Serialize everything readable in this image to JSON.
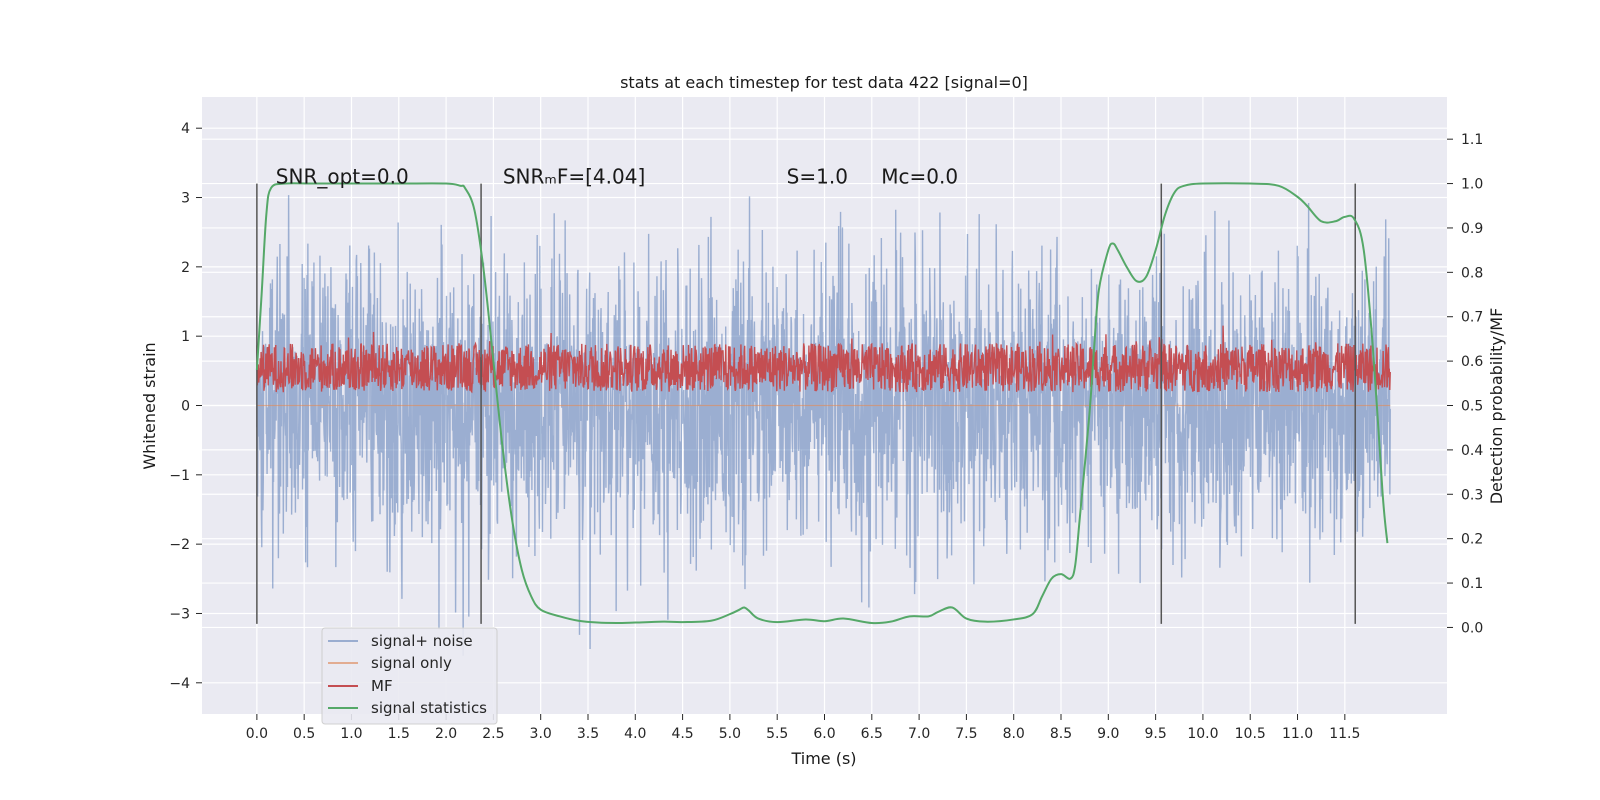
{
  "chart_data": {
    "type": "line",
    "title": "stats at each timestep for test data 422 [signal=0]",
    "xlabel": "Time (s)",
    "ylabel": "Whitened strain",
    "y2label": "Detection probability/MF",
    "xlim": [
      -0.58,
      12.58
    ],
    "ylim": [
      -4.45,
      4.45
    ],
    "y2lim": [
      -0.195,
      1.195
    ],
    "grid": true,
    "legend_position": "lower-left",
    "x_ticks": [
      0.0,
      0.5,
      1.0,
      1.5,
      2.0,
      2.5,
      3.0,
      3.5,
      4.0,
      4.5,
      5.0,
      5.5,
      6.0,
      6.5,
      7.0,
      7.5,
      8.0,
      8.5,
      9.0,
      9.5,
      10.0,
      10.5,
      11.0,
      11.5
    ],
    "x_tick_labels": [
      "0.0",
      "0.5",
      "1.0",
      "1.5",
      "2.0",
      "2.5",
      "3.0",
      "3.5",
      "4.0",
      "4.5",
      "5.0",
      "5.5",
      "6.0",
      "6.5",
      "7.0",
      "7.5",
      "8.0",
      "8.5",
      "9.0",
      "9.5",
      "10.0",
      "10.5",
      "11.0",
      "11.5"
    ],
    "y_ticks": [
      4,
      3,
      2,
      1,
      0,
      -1,
      -2,
      -3,
      -4
    ],
    "y_tick_labels": [
      "4",
      "3",
      "2",
      "1",
      "0",
      "−1",
      "−2",
      "−3",
      "−4"
    ],
    "y2_ticks": [
      1.1,
      1.0,
      0.9,
      0.8,
      0.7,
      0.6,
      0.5,
      0.4,
      0.3,
      0.2,
      0.1,
      0.0
    ],
    "y2_tick_labels": [
      "1.1",
      "1.0",
      "0.9",
      "0.8",
      "0.7",
      "0.6",
      "0.5",
      "0.4",
      "0.3",
      "0.2",
      "0.1",
      "0.0"
    ],
    "annotations": [
      {
        "text": "SNR_opt=0.0",
        "x": 0.2,
        "y": 3.2
      },
      {
        "text": "SNRₘF=[4.04]",
        "x": 2.6,
        "y": 3.2
      },
      {
        "text": "S=1.0",
        "x": 5.6,
        "y": 3.2
      },
      {
        "text": "Mᴄ=0.0",
        "x": 6.6,
        "y": 3.2
      }
    ],
    "vertical_lines": [
      0.0,
      2.37,
      9.56,
      11.61
    ],
    "vertical_line_range": [
      -3.15,
      3.2
    ],
    "series": [
      {
        "name": "signal+ noise",
        "color": "#4c72b0",
        "x_range": [
          0.0,
          11.98
        ],
        "amplitude_std": 1.0,
        "description": "noisy whitened strain, roughly within ±2.5 with spikes to about ±4"
      },
      {
        "name": "signal only",
        "color": "#dd8452",
        "values": [
          0.0,
          0.0
        ],
        "x": [
          0.0,
          11.98
        ]
      },
      {
        "name": "MF",
        "color": "#c44e52",
        "axis": "right",
        "x_range": [
          0.0,
          11.98
        ],
        "typical_range": [
          0.53,
          0.64
        ]
      },
      {
        "name": "signal statistics",
        "color": "#55a868",
        "axis": "right",
        "x": [
          0.0,
          0.05,
          0.1,
          0.15,
          0.3,
          0.6,
          1.0,
          1.5,
          2.0,
          2.15,
          2.2,
          2.3,
          2.4,
          2.5,
          2.6,
          2.7,
          2.8,
          2.9,
          3.0,
          3.2,
          3.4,
          3.6,
          3.8,
          4.0,
          4.3,
          4.5,
          4.8,
          5.0,
          5.1,
          5.15,
          5.2,
          5.3,
          5.5,
          5.8,
          6.0,
          6.2,
          6.5,
          6.7,
          6.9,
          7.1,
          7.2,
          7.35,
          7.5,
          7.7,
          8.0,
          8.2,
          8.3,
          8.4,
          8.5,
          8.6,
          8.65,
          8.7,
          8.8,
          8.85,
          8.9,
          9.0,
          9.05,
          9.1,
          9.2,
          9.3,
          9.4,
          9.5,
          9.6,
          9.7,
          9.8,
          10.0,
          10.5,
          10.8,
          11.0,
          11.1,
          11.25,
          11.4,
          11.5,
          11.6,
          11.7,
          11.8,
          11.9,
          11.95
        ],
        "values": [
          0.58,
          0.75,
          0.93,
          0.99,
          1.0,
          1.0,
          1.0,
          1.0,
          1.0,
          0.995,
          0.99,
          0.94,
          0.8,
          0.6,
          0.4,
          0.24,
          0.13,
          0.07,
          0.04,
          0.025,
          0.015,
          0.011,
          0.01,
          0.011,
          0.013,
          0.012,
          0.015,
          0.03,
          0.04,
          0.045,
          0.038,
          0.02,
          0.012,
          0.018,
          0.014,
          0.02,
          0.01,
          0.013,
          0.025,
          0.025,
          0.035,
          0.045,
          0.02,
          0.013,
          0.018,
          0.03,
          0.07,
          0.11,
          0.12,
          0.11,
          0.14,
          0.25,
          0.48,
          0.63,
          0.76,
          0.85,
          0.865,
          0.85,
          0.81,
          0.78,
          0.79,
          0.85,
          0.93,
          0.98,
          0.995,
          1.0,
          1.0,
          0.995,
          0.97,
          0.95,
          0.915,
          0.915,
          0.925,
          0.92,
          0.85,
          0.62,
          0.3,
          0.19
        ]
      }
    ]
  }
}
